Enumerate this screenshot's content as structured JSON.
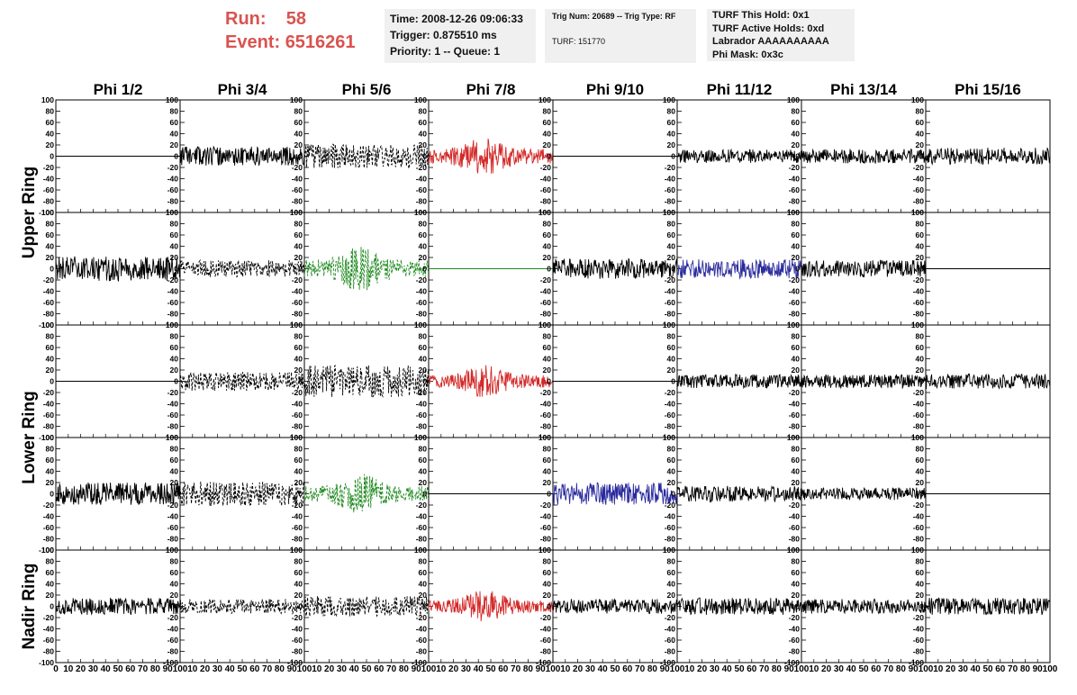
{
  "header": {
    "run_label": "Run:",
    "run_value": "58",
    "event_label": "Event:",
    "event_value": "6516261"
  },
  "info": {
    "time": "Time: 2008-12-26 09:06:33",
    "trigger": "Trigger: 0.875510 ms",
    "priority": "Priority: 1 -- Queue: 1",
    "trig_num": "Trig Num: 20689 -- Trig Type: RF",
    "turf": "TURF: 151770",
    "turf_hold": "TURF This Hold: 0x1",
    "turf_active": "TURF Active Holds: 0xd",
    "labrador": "Labrador AAAAAAAAAA",
    "phi_mask": "Phi Mask: 0x3c"
  },
  "chart_data": {
    "type": "line",
    "columns": [
      "Phi 1/2",
      "Phi 3/4",
      "Phi 5/6",
      "Phi 7/8",
      "Phi 9/10",
      "Phi 11/12",
      "Phi 13/14",
      "Phi 15/16"
    ],
    "ring_labels": [
      {
        "text": "Upper Ring",
        "rows": [
          0,
          1
        ]
      },
      {
        "text": "Lower Ring",
        "rows": [
          2,
          3
        ]
      },
      {
        "text": "Nadir Ring",
        "rows": [
          4,
          4
        ]
      }
    ],
    "xlim": [
      0,
      100
    ],
    "ylim": [
      -100,
      100
    ],
    "x_ticks": [
      0,
      10,
      20,
      30,
      40,
      50,
      60,
      70,
      80,
      90,
      100
    ],
    "y_ticks": [
      100,
      80,
      60,
      40,
      20,
      0,
      -20,
      -40,
      -60,
      -80,
      -100
    ],
    "colors": {
      "black": "#000000",
      "red": "#d42a2a",
      "green": "#1f8a1f",
      "blue": "#2b2b9e"
    },
    "panels": [
      [
        {
          "style": "flat",
          "color": "black"
        },
        {
          "style": "solid",
          "color": "black",
          "amp": 17,
          "seed": 11
        },
        {
          "style": "dashed",
          "color": "black",
          "amp": 22,
          "seed": 12
        },
        {
          "style": "solid",
          "color": "red",
          "amp": 24,
          "seed": 13
        },
        {
          "style": "flat",
          "color": "black"
        },
        {
          "style": "solid",
          "color": "black",
          "amp": 12,
          "seed": 14
        },
        {
          "style": "solid",
          "color": "black",
          "amp": 13,
          "seed": 15
        },
        {
          "style": "solid",
          "color": "black",
          "amp": 15,
          "seed": 16
        }
      ],
      [
        {
          "style": "solid",
          "color": "black",
          "amp": 22,
          "seed": 21
        },
        {
          "style": "dashed",
          "color": "black",
          "amp": 15,
          "seed": 22
        },
        {
          "style": "dashed",
          "color": "green",
          "amp": 28,
          "seed": 23
        },
        {
          "style": "flat",
          "color": "green"
        },
        {
          "style": "solid",
          "color": "black",
          "amp": 18,
          "seed": 24
        },
        {
          "style": "solid",
          "color": "blue",
          "amp": 17,
          "seed": 25
        },
        {
          "style": "solid",
          "color": "black",
          "amp": 15,
          "seed": 26
        },
        {
          "style": "flat",
          "color": "black"
        }
      ],
      [
        {
          "style": "flat",
          "color": "black"
        },
        {
          "style": "dashed",
          "color": "black",
          "amp": 17,
          "seed": 31
        },
        {
          "style": "dashed",
          "color": "black",
          "amp": 28,
          "seed": 32
        },
        {
          "style": "solid",
          "color": "red",
          "amp": 20,
          "seed": 33
        },
        {
          "style": "flat",
          "color": "black"
        },
        {
          "style": "solid",
          "color": "black",
          "amp": 12,
          "seed": 34
        },
        {
          "style": "solid",
          "color": "black",
          "amp": 12,
          "seed": 35
        },
        {
          "style": "solid",
          "color": "black",
          "amp": 13,
          "seed": 36
        }
      ],
      [
        {
          "style": "solid",
          "color": "black",
          "amp": 20,
          "seed": 41
        },
        {
          "style": "dashed",
          "color": "black",
          "amp": 22,
          "seed": 42
        },
        {
          "style": "dashed",
          "color": "green",
          "amp": 25,
          "seed": 43
        },
        {
          "style": "flat",
          "color": "black"
        },
        {
          "style": "solid",
          "color": "blue",
          "amp": 20,
          "seed": 44
        },
        {
          "style": "solid",
          "color": "black",
          "amp": 14,
          "seed": 45
        },
        {
          "style": "solid",
          "color": "black",
          "amp": 11,
          "seed": 46
        },
        {
          "style": "flat",
          "color": "black"
        }
      ],
      [
        {
          "style": "solid",
          "color": "black",
          "amp": 15,
          "seed": 51
        },
        {
          "style": "dashed",
          "color": "black",
          "amp": 13,
          "seed": 52
        },
        {
          "style": "dashed",
          "color": "black",
          "amp": 18,
          "seed": 53
        },
        {
          "style": "solid",
          "color": "red",
          "amp": 20,
          "seed": 54
        },
        {
          "style": "solid",
          "color": "black",
          "amp": 13,
          "seed": 55
        },
        {
          "style": "solid",
          "color": "black",
          "amp": 15,
          "seed": 56
        },
        {
          "style": "solid",
          "color": "black",
          "amp": 13,
          "seed": 57
        },
        {
          "style": "solid",
          "color": "black",
          "amp": 15,
          "seed": 58
        }
      ]
    ]
  }
}
